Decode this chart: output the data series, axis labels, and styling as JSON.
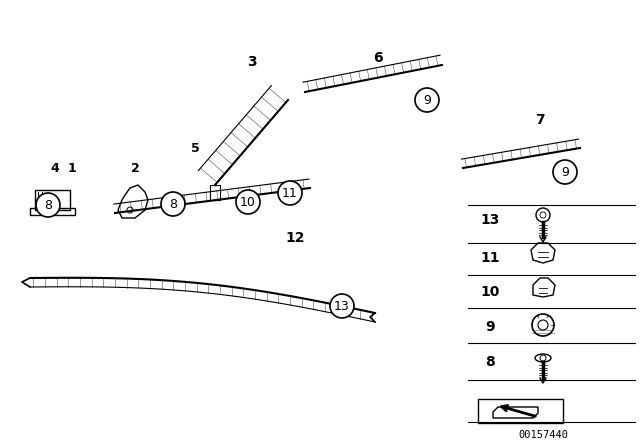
{
  "bg_color": "#ffffff",
  "line_color": "#000000",
  "fig_width": 6.4,
  "fig_height": 4.48,
  "dpi": 100,
  "ref_number": "00157440"
}
